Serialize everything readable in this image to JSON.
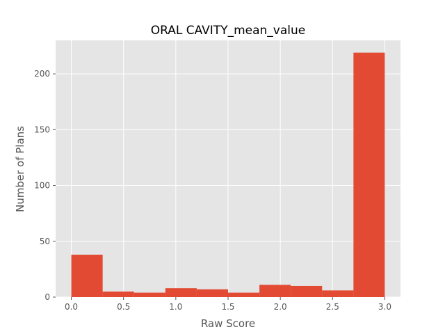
{
  "chart_data": {
    "type": "histogram",
    "title": "ORAL CAVITY_mean_value",
    "xlabel": "Raw Score",
    "ylabel": "Number of Plans",
    "xlim": [
      -0.15,
      3.15
    ],
    "ylim": [
      0,
      230
    ],
    "xticks": [
      "0.0",
      "0.5",
      "1.0",
      "1.5",
      "2.0",
      "2.5",
      "3.0"
    ],
    "xtick_values": [
      0,
      0.5,
      1.0,
      1.5,
      2.0,
      2.5,
      3.0
    ],
    "yticks": [
      "0",
      "50",
      "100",
      "150",
      "200"
    ],
    "ytick_values": [
      0,
      50,
      100,
      150,
      200
    ],
    "bins": [
      {
        "x0": 0.0,
        "x1": 0.3,
        "value": 38
      },
      {
        "x0": 0.3,
        "x1": 0.6,
        "value": 5
      },
      {
        "x0": 0.6,
        "x1": 0.9,
        "value": 4
      },
      {
        "x0": 0.9,
        "x1": 1.2,
        "value": 8
      },
      {
        "x0": 1.2,
        "x1": 1.5,
        "value": 7
      },
      {
        "x0": 1.5,
        "x1": 1.8,
        "value": 4
      },
      {
        "x0": 1.8,
        "x1": 2.1,
        "value": 11
      },
      {
        "x0": 2.1,
        "x1": 2.4,
        "value": 10
      },
      {
        "x0": 2.4,
        "x1": 2.7,
        "value": 6
      },
      {
        "x0": 2.7,
        "x1": 3.0,
        "value": 219
      }
    ],
    "grid": true,
    "bar_color": "#E24A33",
    "background_color": "#E5E5E5",
    "grid_color": "#FFFFFF"
  }
}
